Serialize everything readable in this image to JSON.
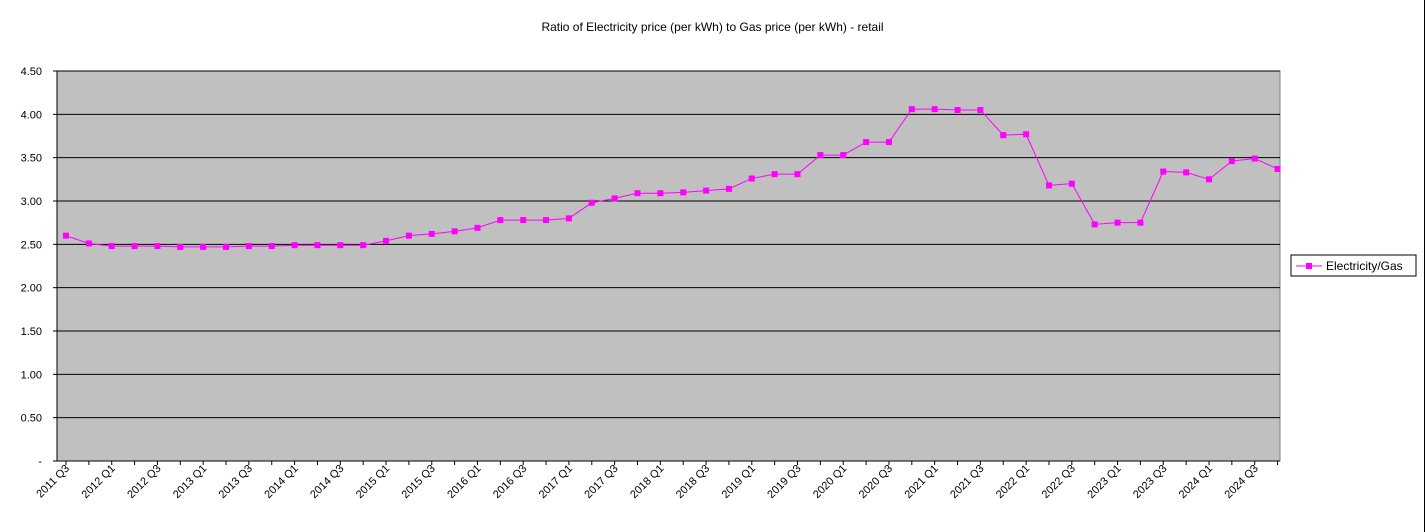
{
  "chart_data": {
    "type": "line",
    "title": "Ratio of Electricity price (per kWh) to Gas price (per kWh) - retail",
    "xlabel": "",
    "ylabel": "",
    "ylim": [
      0,
      4.5
    ],
    "yticks": [
      0,
      0.5,
      1.0,
      1.5,
      2.0,
      2.5,
      3.0,
      3.5,
      4.0,
      4.5
    ],
    "ytick_labels": [
      "-",
      "0.50",
      "1.00",
      "1.50",
      "2.00",
      "2.50",
      "3.00",
      "3.50",
      "4.00",
      "4.50"
    ],
    "grid": true,
    "legend_position": "right",
    "plot_background": "#C0C0C0",
    "series_color": "#FF00FF",
    "categories": [
      "2011 Q3",
      "2011 Q4",
      "2012 Q1",
      "2012 Q2",
      "2012 Q3",
      "2012 Q4",
      "2013 Q1",
      "2013 Q2",
      "2013 Q3",
      "2013 Q4",
      "2014 Q1",
      "2014 Q2",
      "2014 Q3",
      "2014 Q4",
      "2015 Q1",
      "2015 Q2",
      "2015 Q3",
      "2015 Q4",
      "2016 Q1",
      "2016 Q2",
      "2016 Q3",
      "2016 Q4",
      "2017 Q1",
      "2017 Q2",
      "2017 Q3",
      "2017 Q4",
      "2018 Q1",
      "2018 Q2",
      "2018 Q3",
      "2018 Q4",
      "2019 Q1",
      "2019 Q2",
      "2019 Q3",
      "2019 Q4",
      "2020 Q1",
      "2020 Q2",
      "2020 Q3",
      "2020 Q4",
      "2021 Q1",
      "2021 Q2",
      "2021 Q3",
      "2021 Q4",
      "2022 Q1",
      "2022 Q2",
      "2022 Q3",
      "2022 Q4",
      "2023 Q1",
      "2023 Q2",
      "2023 Q3",
      "2023 Q4",
      "2024 Q1",
      "2024 Q2",
      "2024 Q3",
      "2024 Q4"
    ],
    "x_tick_labels": [
      "2011 Q3",
      "2012 Q1",
      "2012 Q3",
      "2013 Q1",
      "2013 Q3",
      "2014 Q1",
      "2014 Q3",
      "2015 Q1",
      "2015 Q3",
      "2016 Q1",
      "2016 Q3",
      "2017 Q1",
      "2017 Q3",
      "2018 Q1",
      "2018 Q3",
      "2019 Q1",
      "2019 Q3",
      "2020 Q1",
      "2020 Q3",
      "2021 Q1",
      "2021 Q3",
      "2022 Q1",
      "2022 Q3",
      "2023 Q1",
      "2023 Q3",
      "2024 Q1",
      "2024 Q3"
    ],
    "series": [
      {
        "name": "Electricity/Gas",
        "values": [
          2.6,
          2.51,
          2.48,
          2.48,
          2.48,
          2.47,
          2.47,
          2.47,
          2.48,
          2.48,
          2.49,
          2.49,
          2.49,
          2.49,
          2.54,
          2.6,
          2.62,
          2.65,
          2.69,
          2.78,
          2.78,
          2.78,
          2.8,
          2.98,
          3.03,
          3.09,
          3.09,
          3.1,
          3.12,
          3.14,
          3.26,
          3.31,
          3.31,
          3.53,
          3.53,
          3.68,
          3.68,
          4.06,
          4.06,
          4.05,
          4.05,
          3.76,
          3.77,
          3.18,
          3.2,
          2.73,
          2.75,
          2.75,
          3.34,
          3.33,
          3.25,
          3.46,
          3.49,
          3.37
        ]
      }
    ]
  }
}
